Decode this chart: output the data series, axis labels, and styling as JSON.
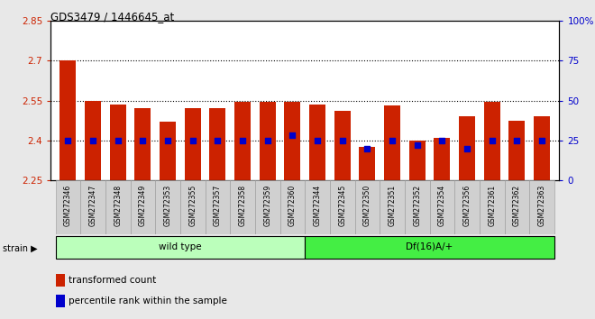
{
  "title": "GDS3479 / 1446645_at",
  "categories": [
    "GSM272346",
    "GSM272347",
    "GSM272348",
    "GSM272349",
    "GSM272353",
    "GSM272355",
    "GSM272357",
    "GSM272358",
    "GSM272359",
    "GSM272360",
    "GSM272344",
    "GSM272345",
    "GSM272350",
    "GSM272351",
    "GSM272352",
    "GSM272354",
    "GSM272356",
    "GSM272361",
    "GSM272362",
    "GSM272363"
  ],
  "bar_values": [
    2.7,
    2.55,
    2.535,
    2.52,
    2.47,
    2.52,
    2.52,
    2.545,
    2.545,
    2.545,
    2.535,
    2.51,
    2.375,
    2.53,
    2.4,
    2.41,
    2.49,
    2.545,
    2.475,
    2.49
  ],
  "percentile_values": [
    25,
    25,
    25,
    25,
    25,
    25,
    25,
    25,
    25,
    28,
    25,
    25,
    20,
    25,
    22,
    25,
    20,
    25,
    25,
    25
  ],
  "bar_color": "#cc2200",
  "dot_color": "#0000cc",
  "ylim_left": [
    2.25,
    2.85
  ],
  "yticks_left": [
    2.25,
    2.4,
    2.55,
    2.7,
    2.85
  ],
  "yticks_right": [
    0,
    25,
    50,
    75,
    100
  ],
  "hlines": [
    2.7,
    2.55,
    2.4
  ],
  "wild_type_count": 10,
  "df_count": 10,
  "group1_label": "wild type",
  "group2_label": "Df(16)A/+",
  "group1_color": "#bbffbb",
  "group2_color": "#44ee44",
  "strain_label": "strain",
  "legend_bar_label": "transformed count",
  "legend_dot_label": "percentile rank within the sample",
  "background_color": "#e8e8e8",
  "plot_bg_color": "#ffffff",
  "tick_bg_color": "#d0d0d0"
}
